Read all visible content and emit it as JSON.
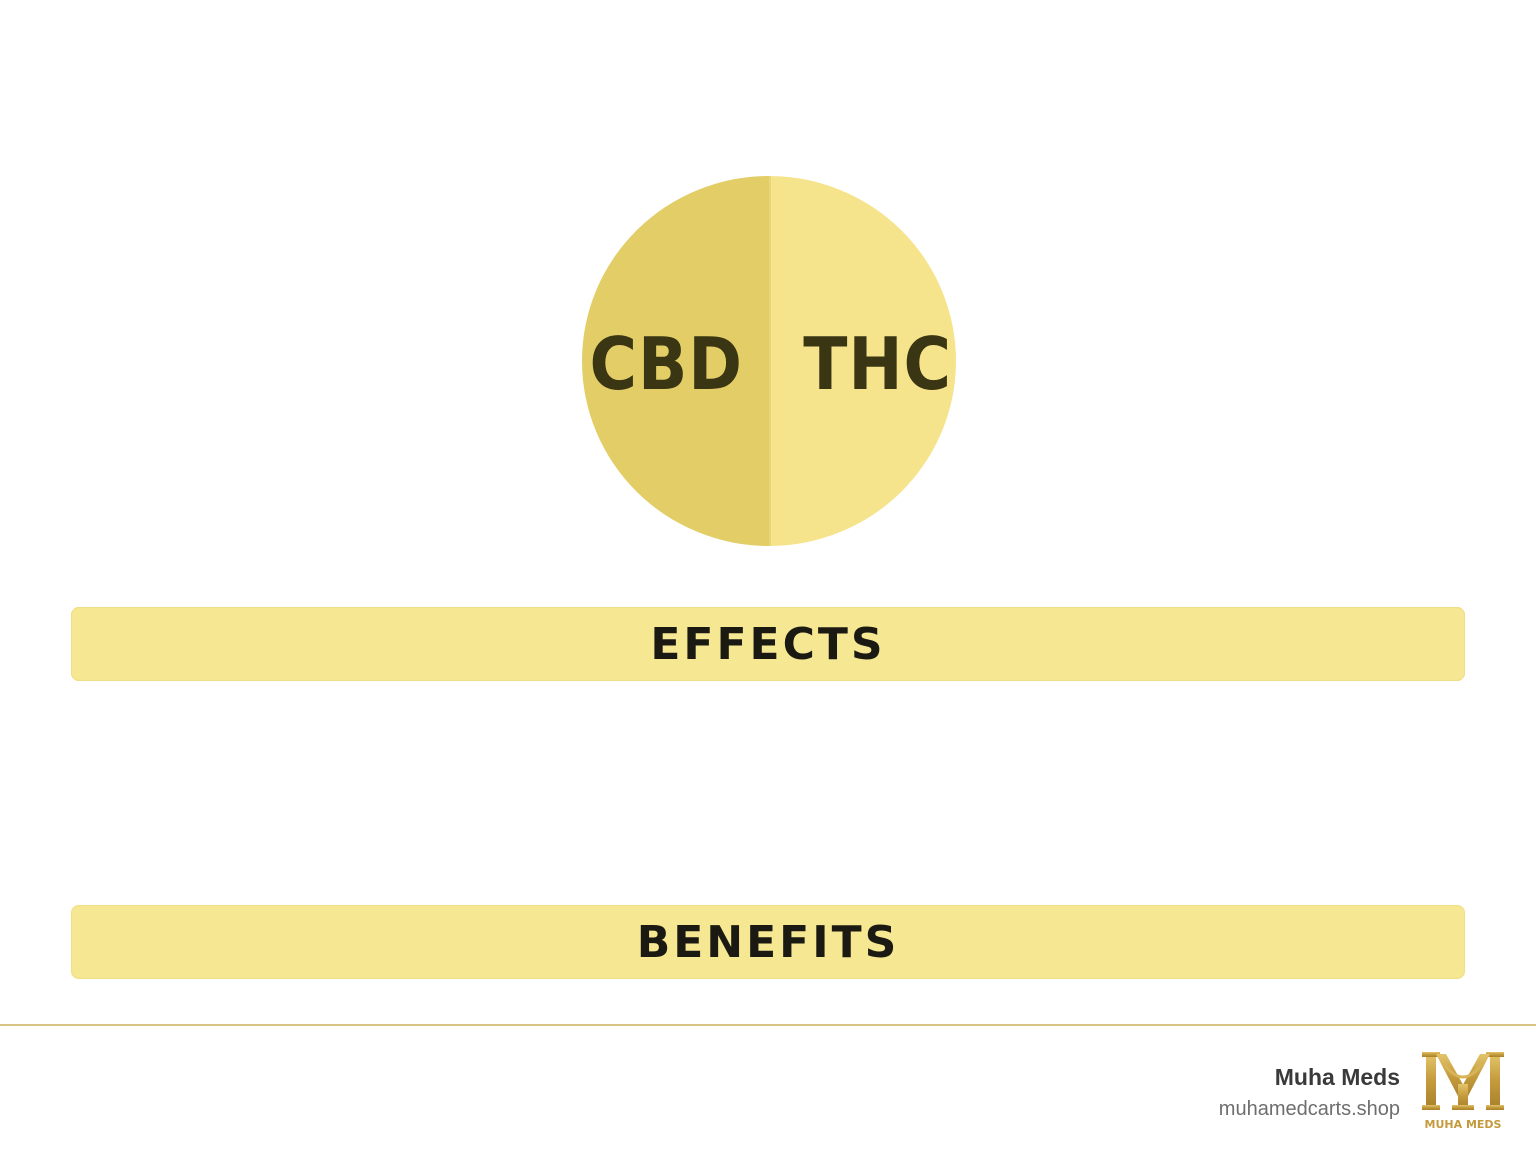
{
  "circle": {
    "left_label": "CBD",
    "right_label": "THC",
    "colors": {
      "left": "#e2cd66",
      "right": "#f6e48c",
      "text": "#3a3512"
    }
  },
  "sections": [
    {
      "label": "EFFECTS"
    },
    {
      "label": "BENEFITS"
    }
  ],
  "footer": {
    "brand_name": "Muha Meds",
    "brand_url": "muhamedcarts.shop",
    "logo_text": "MUHA MEDS",
    "logo_icon": "muha-meds-monogram-logo",
    "accent_color": "#c9a94a"
  }
}
